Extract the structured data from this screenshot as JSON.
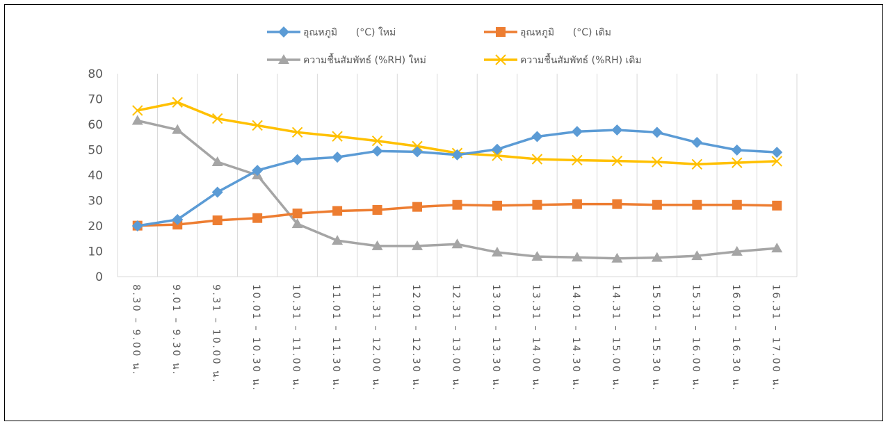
{
  "chart_data": {
    "type": "line",
    "title": "",
    "xlabel": "",
    "ylabel": "",
    "ylim": [
      0,
      80
    ],
    "yticks": [
      0,
      10,
      20,
      30,
      40,
      50,
      60,
      70,
      80
    ],
    "grid": "vertical",
    "legend_position": "top",
    "categories": [
      "8.30 – 9.00 น.",
      "9.01 – 9.30 น.",
      "9.31 – 10.00 น.",
      "10.01 – 10.30 น.",
      "10.31 – 11.00 น.",
      "11.01 – 11.30 น.",
      "11.31 – 12.00 น.",
      "12.01 – 12.30 น.",
      "12.31 – 13.00 น.",
      "13.01 – 13.30 น.",
      "13.31 – 14.00 น.",
      "14.01 – 14.30 น.",
      "14.31 – 15.00 น.",
      "15.01 – 15.30 น.",
      "15.31 – 16.00 น.",
      "16.01 – 16.30 น.",
      "16.31 – 17.00 น."
    ],
    "series": [
      {
        "name": "อุณหภูมิ      (°C) ใหม่",
        "color": "#5B9BD5",
        "marker": "diamond",
        "values": [
          20,
          22.5,
          33.3,
          41.9,
          46.1,
          47.1,
          49.5,
          49.2,
          48,
          50.2,
          55.2,
          57.2,
          57.8,
          56.9,
          52.9,
          49.9,
          49
        ]
      },
      {
        "name": "อุณหภูมิ      (°C) เดิม",
        "color": "#ED7D31",
        "marker": "square",
        "values": [
          20.1,
          20.5,
          22.2,
          23.1,
          24.9,
          25.9,
          26.3,
          27.5,
          28.3,
          28,
          28.3,
          28.6,
          28.6,
          28.3,
          28.3,
          28.3,
          28
        ]
      },
      {
        "name": "ความชื้นสัมพัทธ์ (%RH) ใหม่",
        "color": "#A5A5A5",
        "marker": "triangle",
        "values": [
          61.5,
          57.9,
          45.2,
          40,
          20.8,
          14.2,
          12.1,
          12.1,
          12.8,
          9.6,
          7.9,
          7.6,
          7.2,
          7.5,
          8.2,
          9.9,
          11.2
        ]
      },
      {
        "name": "ความชื้นสัมพัทธ์ (%RH) เดิม",
        "color": "#FFC000",
        "marker": "x",
        "values": [
          65.5,
          68.7,
          62.3,
          59.6,
          56.9,
          55.3,
          53.5,
          51.4,
          48.7,
          47.7,
          46.3,
          45.9,
          45.6,
          45.2,
          44.3,
          44.9,
          45.5
        ]
      }
    ]
  }
}
